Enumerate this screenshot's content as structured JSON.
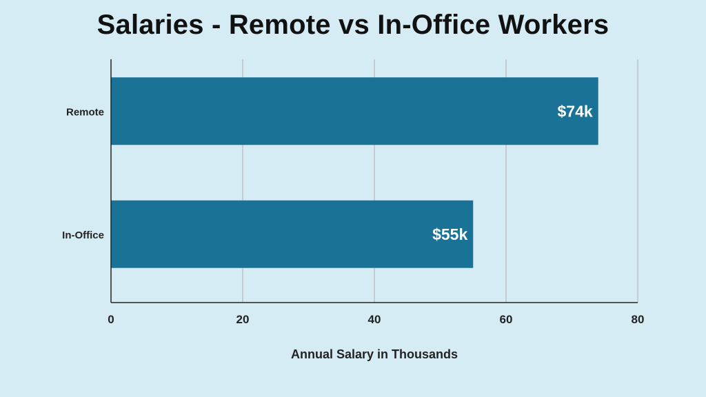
{
  "chart_data": {
    "type": "bar",
    "orientation": "horizontal",
    "title": "Salaries - Remote vs In-Office Workers",
    "xlabel": "Annual Salary in Thousands",
    "ylabel": "",
    "categories": [
      "Remote",
      "In-Office"
    ],
    "values": [
      74,
      55
    ],
    "data_labels": [
      "$74k",
      "$55k"
    ],
    "xlim": [
      0,
      80
    ],
    "x_ticks": [
      0,
      20,
      40,
      60,
      80
    ],
    "x_tick_labels": [
      "0",
      "20",
      "40",
      "60",
      "80"
    ],
    "grid": "vertical",
    "legend": "none"
  },
  "colors": {
    "background": "#d6ecf5",
    "bar": "#1a7297",
    "gridline": "#b9c4c8",
    "axis": "#222222",
    "data_label": "#ffffff"
  }
}
